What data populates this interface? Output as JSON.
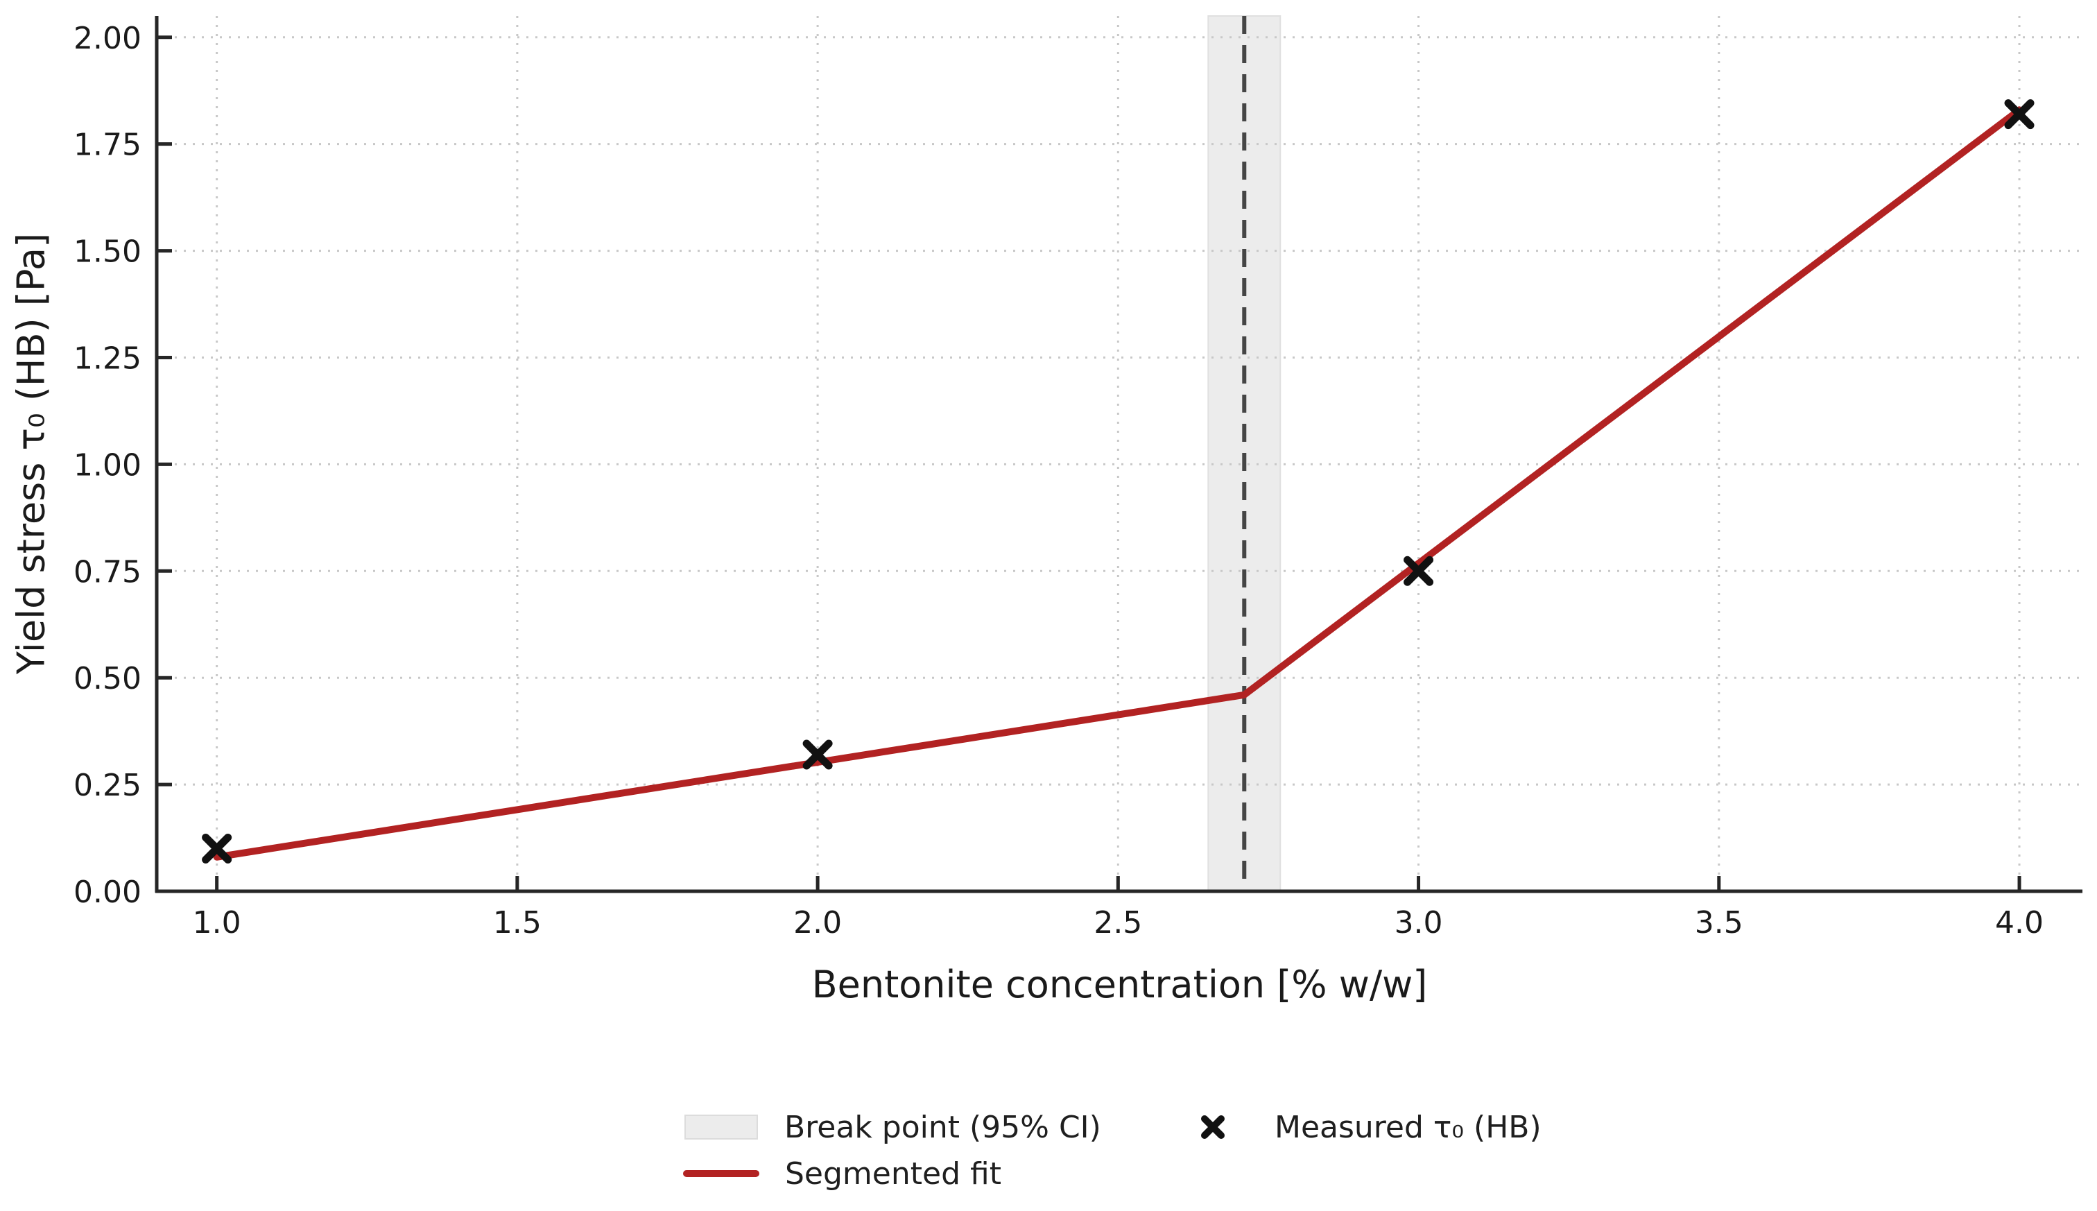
{
  "chart_data": {
    "type": "line",
    "title": "",
    "xlabel": "Bentonite concentration [% w/w]",
    "ylabel": "Yield stress τ₀ (HB) [Pa]",
    "xlim": [
      0.9,
      4.105
    ],
    "ylim": [
      0,
      2.05
    ],
    "x_ticks": [
      1.0,
      1.5,
      2.0,
      2.5,
      3.0,
      3.5,
      4.0
    ],
    "x_tick_labels": [
      "1.0",
      "1.5",
      "2.0",
      "2.5",
      "3.0",
      "3.5",
      "4.0"
    ],
    "y_ticks": [
      0.0,
      0.25,
      0.5,
      0.75,
      1.0,
      1.25,
      1.5,
      1.75,
      2.0
    ],
    "y_tick_labels": [
      "0.00",
      "0.25",
      "0.50",
      "0.75",
      "1.00",
      "1.25",
      "1.50",
      "1.75",
      "2.00"
    ],
    "grid": "dotted",
    "series": [
      {
        "name": "Segmented fit",
        "type": "line",
        "color": "#b22222",
        "x": [
          1.0,
          2.71,
          4.0
        ],
        "y": [
          0.08,
          0.46,
          1.83
        ]
      },
      {
        "name": "Measured τ₀ (HB)",
        "type": "scatter",
        "marker": "x",
        "color": "#111111",
        "x": [
          1.0,
          2.0,
          3.0,
          4.0
        ],
        "y": [
          0.1,
          0.32,
          0.75,
          1.82
        ]
      }
    ],
    "break_point": {
      "x": 2.71,
      "ci": [
        2.65,
        2.77
      ],
      "line_color": "#454545",
      "band_color": "#ececec",
      "band_edge": "#e0e0e0"
    },
    "colors": {
      "fit_line": "#b22222",
      "marker": "#111111",
      "grid": "#c8c8c8",
      "axis": "#262626",
      "text": "#1a1a1a"
    },
    "legend": {
      "position": "below-axes",
      "frame": false,
      "entries": [
        {
          "label": "Break point (95% CI)",
          "swatch": "band"
        },
        {
          "label": "Segmented fit",
          "swatch": "line"
        },
        {
          "label": "Measured τ₀ (HB)",
          "swatch": "x-marker"
        }
      ]
    }
  }
}
